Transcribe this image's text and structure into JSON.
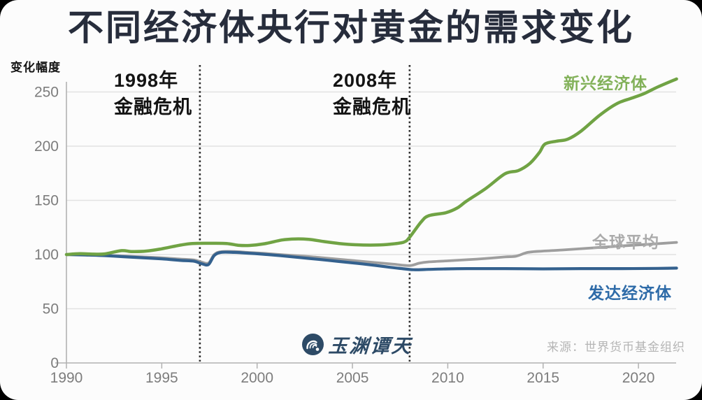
{
  "page": {
    "title": "不同经济体央行对黄金的需求变化"
  },
  "chart_data": {
    "type": "line",
    "title": "不同经济体央行对黄金的需求变化",
    "ylabel": "变化幅度",
    "xlabel": "",
    "x_ticks": [
      1990,
      1995,
      2000,
      2005,
      2010,
      2015,
      2020
    ],
    "y_ticks": [
      0,
      50,
      100,
      150,
      200,
      250
    ],
    "xlim": [
      1990,
      2022.2
    ],
    "ylim": [
      0,
      265
    ],
    "grid": "horizontal",
    "legend_position": "inline-labels",
    "style": {
      "grid_color": "#e2e2e2",
      "axis_color": "#b2b2b2",
      "tick_label_color": "#7d7d7d",
      "event_line_color": "#2e2e2e",
      "background": "#fcfcfc",
      "title_color": "#272d3c"
    },
    "event_lines": [
      {
        "year": 1997,
        "label_lines": [
          "1998年",
          "金融危机"
        ]
      },
      {
        "year": 2008,
        "label_lines": [
          "2008年",
          "金融危机"
        ]
      }
    ],
    "series": [
      {
        "name": "全球平均",
        "color": "#9e9e9e",
        "label_color": "#ababab",
        "width": 3.8,
        "points": [
          [
            1990,
            100
          ],
          [
            1991,
            99.8
          ],
          [
            1992,
            99.4
          ],
          [
            1993,
            98.6
          ],
          [
            1994,
            97.8
          ],
          [
            1995,
            97
          ],
          [
            1996,
            95.8
          ],
          [
            1996.7,
            95
          ],
          [
            1997.1,
            93
          ],
          [
            1997.45,
            92.2
          ],
          [
            1997.75,
            100
          ],
          [
            1998.1,
            102.6
          ],
          [
            1998.8,
            102.8
          ],
          [
            1999.5,
            102
          ],
          [
            2000.3,
            101.2
          ],
          [
            2001.2,
            100
          ],
          [
            2002.2,
            98.8
          ],
          [
            2003.2,
            97.4
          ],
          [
            2004.2,
            95.8
          ],
          [
            2005.2,
            94.2
          ],
          [
            2006.2,
            92.6
          ],
          [
            2007.2,
            91
          ],
          [
            2008,
            89.8
          ],
          [
            2008.5,
            92
          ],
          [
            2009,
            93.2
          ],
          [
            2010,
            94.2
          ],
          [
            2011,
            95.2
          ],
          [
            2012,
            96.4
          ],
          [
            2013,
            97.8
          ],
          [
            2013.6,
            98.6
          ],
          [
            2014.2,
            102
          ],
          [
            2015,
            103.2
          ],
          [
            2016,
            104.2
          ],
          [
            2017,
            105.4
          ],
          [
            2018,
            106.6
          ],
          [
            2019,
            107.8
          ],
          [
            2020,
            108.9
          ],
          [
            2021,
            110
          ],
          [
            2022,
            111.2
          ]
        ]
      },
      {
        "name": "发达经济体",
        "color": "#34618e",
        "label_color": "#2e6ba8",
        "width": 4.2,
        "points": [
          [
            1990,
            100
          ],
          [
            1991,
            99.6
          ],
          [
            1992,
            99
          ],
          [
            1993,
            98
          ],
          [
            1994,
            97
          ],
          [
            1995,
            96
          ],
          [
            1996,
            94.6
          ],
          [
            1996.7,
            93.8
          ],
          [
            1997.1,
            91.5
          ],
          [
            1997.45,
            90.8
          ],
          [
            1997.75,
            99
          ],
          [
            1998.1,
            102
          ],
          [
            1998.8,
            102
          ],
          [
            1999.5,
            101.3
          ],
          [
            2000.3,
            100.3
          ],
          [
            2001.2,
            99
          ],
          [
            2002.2,
            97.3
          ],
          [
            2003.2,
            95.6
          ],
          [
            2004.2,
            93.8
          ],
          [
            2005.2,
            92
          ],
          [
            2006.2,
            90
          ],
          [
            2007,
            88.2
          ],
          [
            2007.6,
            87
          ],
          [
            2008.2,
            86
          ],
          [
            2009,
            86.3
          ],
          [
            2010,
            86.8
          ],
          [
            2011,
            87
          ],
          [
            2013,
            87
          ],
          [
            2015,
            86.8
          ],
          [
            2017,
            87
          ],
          [
            2019,
            87
          ],
          [
            2021,
            87.2
          ],
          [
            2022,
            87.5
          ]
        ]
      },
      {
        "name": "新兴经济体",
        "color": "#70a344",
        "label_color": "#82b159",
        "width": 4.5,
        "points": [
          [
            1990,
            100
          ],
          [
            1990.7,
            100.8
          ],
          [
            1991.4,
            100.4
          ],
          [
            1992,
            100.6
          ],
          [
            1992.9,
            103.6
          ],
          [
            1993.4,
            102.8
          ],
          [
            1994.2,
            103.2
          ],
          [
            1995,
            105.3
          ],
          [
            1996,
            108.8
          ],
          [
            1996.6,
            110.2
          ],
          [
            1997.5,
            110.4
          ],
          [
            1998.4,
            110.2
          ],
          [
            1999,
            108.6
          ],
          [
            1999.6,
            108.4
          ],
          [
            2000.4,
            110
          ],
          [
            2001.3,
            113.4
          ],
          [
            2002,
            114.4
          ],
          [
            2002.7,
            114
          ],
          [
            2003.5,
            112
          ],
          [
            2004.3,
            110.2
          ],
          [
            2005.2,
            109
          ],
          [
            2006.2,
            108.8
          ],
          [
            2007,
            109.6
          ],
          [
            2007.7,
            111.5
          ],
          [
            2008,
            116
          ],
          [
            2008.6,
            130
          ],
          [
            2009,
            135.8
          ],
          [
            2009.9,
            138.6
          ],
          [
            2010.5,
            143
          ],
          [
            2011,
            149.5
          ],
          [
            2012,
            161
          ],
          [
            2013,
            174.5
          ],
          [
            2013.7,
            177.5
          ],
          [
            2014.3,
            184
          ],
          [
            2014.8,
            194
          ],
          [
            2015.1,
            202
          ],
          [
            2015.7,
            204.6
          ],
          [
            2016.3,
            206.5
          ],
          [
            2017,
            214
          ],
          [
            2018,
            229
          ],
          [
            2018.9,
            239.5
          ],
          [
            2019.6,
            244
          ],
          [
            2020.3,
            248.5
          ],
          [
            2021,
            254.5
          ],
          [
            2022,
            262
          ]
        ]
      }
    ]
  },
  "watermark": {
    "name": "玉渊谭天",
    "logo_color": "#2d4a66"
  },
  "source": {
    "text": "来源：世界货币基金组织"
  }
}
